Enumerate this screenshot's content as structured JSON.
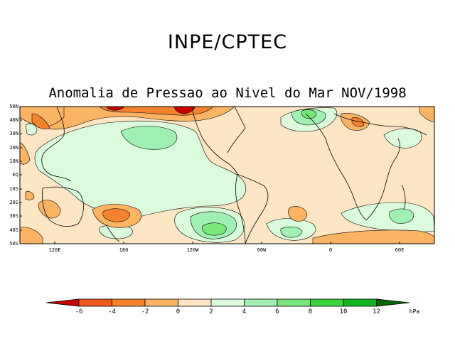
{
  "header": {
    "org_title": "INPE/CPTEC",
    "map_title": "Anomalia de Pressao ao Nivel do Mar NOV/1998"
  },
  "axes": {
    "lat_labels": [
      "50N",
      "40N",
      "30N",
      "20N",
      "10N",
      "EQ",
      "10S",
      "20S",
      "30S",
      "40S",
      "50S"
    ],
    "lon_labels": [
      "120E",
      "180",
      "120W",
      "60W",
      "0",
      "60E"
    ]
  },
  "colorbar": {
    "unit": "hPa",
    "tick_labels": [
      "-6",
      "-4",
      "-2",
      "0",
      "2",
      "4",
      "6",
      "8",
      "10",
      "12"
    ],
    "colors": [
      "#c80000",
      "#f05a1e",
      "#f5822d",
      "#fab464",
      "#fde6c3",
      "#dcfadc",
      "#a0f0b4",
      "#78e678",
      "#3cd23c",
      "#14b41e",
      "#0a9614",
      "#006400"
    ]
  }
}
